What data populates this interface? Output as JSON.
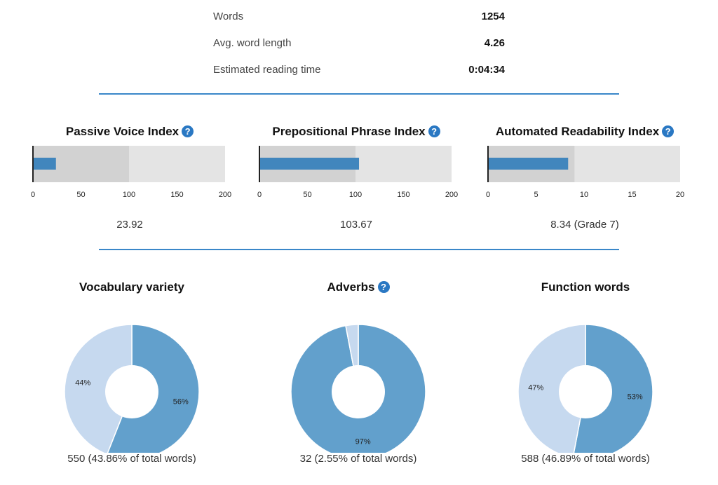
{
  "stats": [
    {
      "label": "Words",
      "value": "1254"
    },
    {
      "label": "Avg. word length",
      "value": "4.26"
    },
    {
      "label": "Estimated reading time",
      "value": "0:04:34"
    }
  ],
  "help_glyph": "?",
  "colors": {
    "accent": "#3a87c9",
    "bar": "#4186bd",
    "band_dark": "#d2d2d2",
    "band_light": "#e4e4e4",
    "pie_main": "#62a0cc",
    "pie_light": "#c6d9ef"
  },
  "chart_data": [
    {
      "type": "bar",
      "title": "Passive Voice Index",
      "value": 23.92,
      "value_label": "23.92",
      "band_threshold": 100,
      "xlim": [
        0,
        200
      ],
      "ticks": [
        "0",
        "50",
        "100",
        "150",
        "200"
      ]
    },
    {
      "type": "bar",
      "title": "Prepositional Phrase Index",
      "value": 103.67,
      "value_label": "103.67",
      "band_threshold": 100,
      "xlim": [
        0,
        200
      ],
      "ticks": [
        "0",
        "50",
        "100",
        "150",
        "200"
      ]
    },
    {
      "type": "bar",
      "title": "Automated Readability Index",
      "value": 8.34,
      "value_label": "8.34 (Grade 7)",
      "band_threshold": 9,
      "xlim": [
        0,
        20
      ],
      "ticks": [
        "0",
        "5",
        "10",
        "15",
        "20"
      ]
    },
    {
      "type": "pie",
      "title": "Vocabulary variety",
      "slices": [
        {
          "label": "56%",
          "value": 56
        },
        {
          "label": "44%",
          "value": 44
        }
      ],
      "caption": "550 (43.86% of total words)"
    },
    {
      "type": "pie",
      "title": "Adverbs",
      "slices": [
        {
          "label": "97%",
          "value": 97
        },
        {
          "label": "",
          "value": 3
        }
      ],
      "caption": "32 (2.55% of total words)"
    },
    {
      "type": "pie",
      "title": "Function words",
      "slices": [
        {
          "label": "53%",
          "value": 53
        },
        {
          "label": "47%",
          "value": 47
        }
      ],
      "caption": "588 (46.89% of total words)"
    }
  ]
}
